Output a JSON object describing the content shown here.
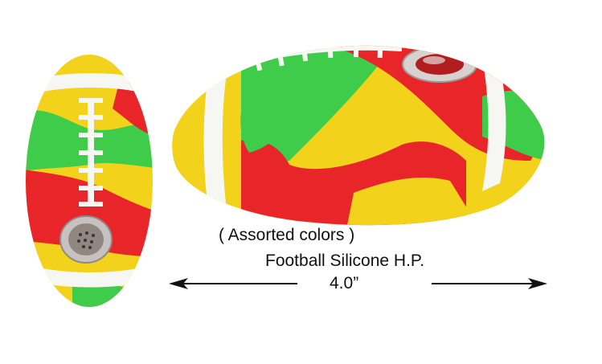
{
  "caption": {
    "colors_text": "( Assorted colors )",
    "product_name": "Football Silicone H.P.",
    "size_text": "4.0”"
  },
  "colors": {
    "red": "#e8262a",
    "yellow": "#f2d21a",
    "green": "#3fcc4a",
    "white": "#f6f6f2",
    "glass": "#c7c2c0",
    "text": "#111111"
  },
  "icons": {
    "left_arrow": "arrow-left-icon",
    "right_arrow": "arrow-right-icon"
  }
}
